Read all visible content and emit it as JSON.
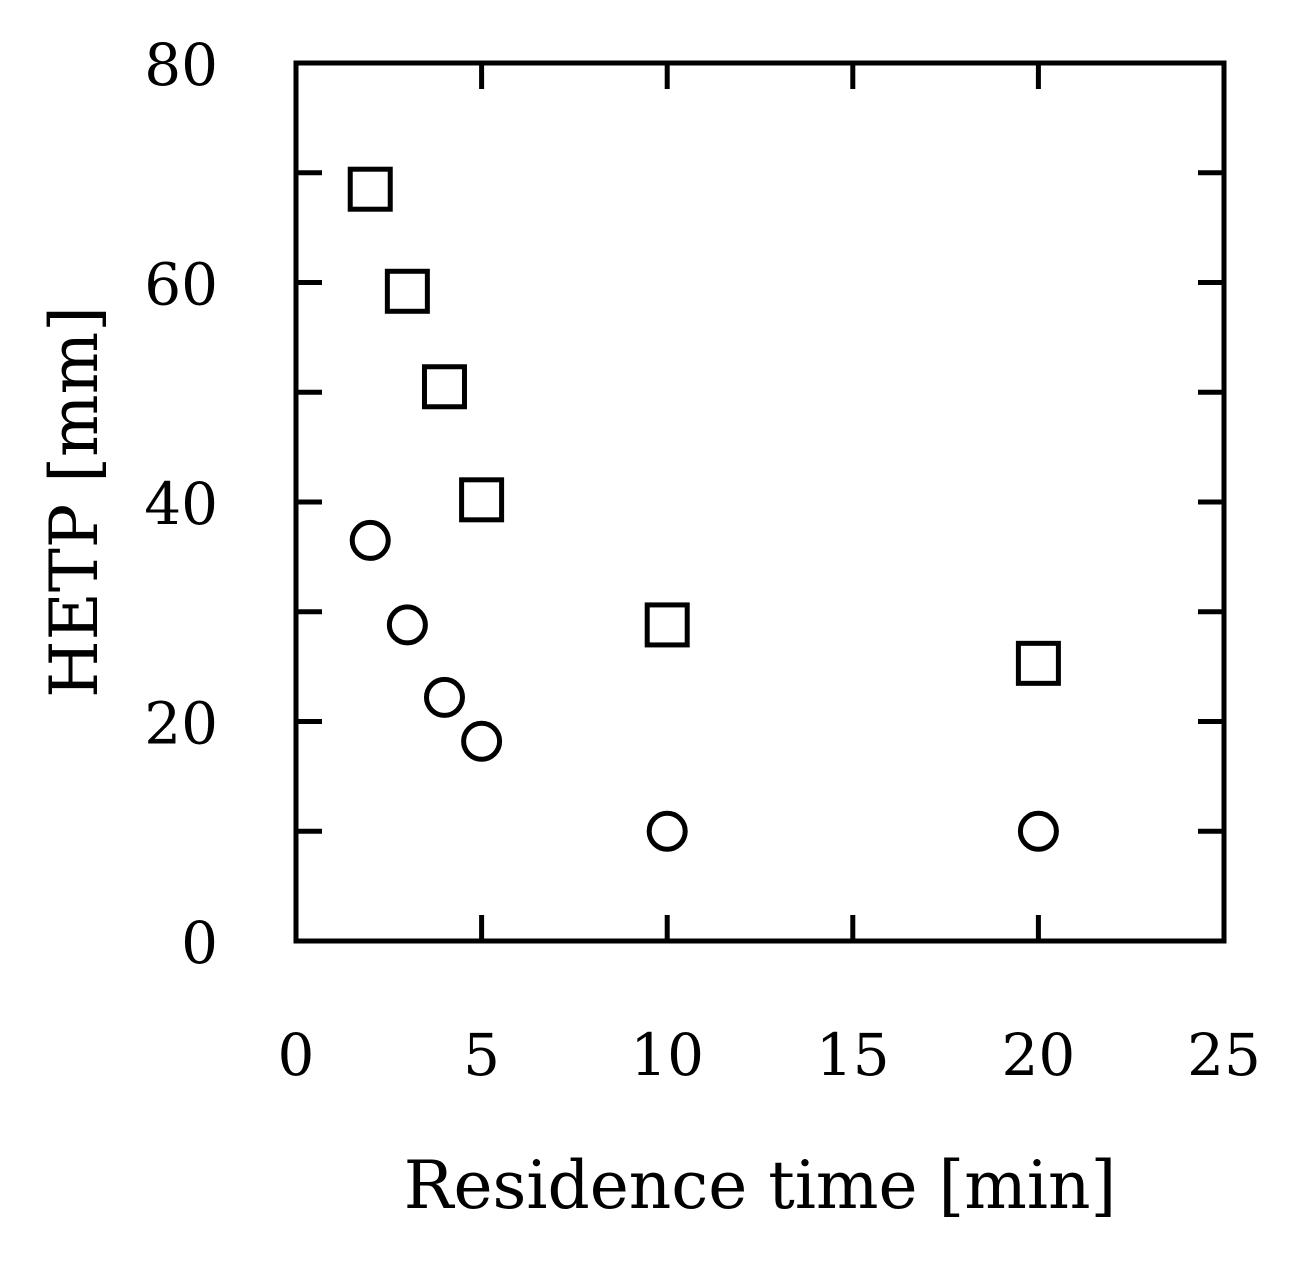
{
  "chart_data": {
    "type": "scatter",
    "title": "",
    "xlabel": "Residence time [min]",
    "ylabel": "HETP [mm]",
    "xlim": [
      0,
      25
    ],
    "ylim": [
      0,
      80
    ],
    "x_ticks": [
      0,
      5,
      10,
      15,
      20,
      25
    ],
    "y_ticks": [
      0,
      20,
      40,
      60,
      80
    ],
    "x_ticks_minor": [],
    "y_ticks_minor": [
      10,
      30,
      50,
      70
    ],
    "grid": false,
    "legend": "none",
    "series": [
      {
        "marker": "square",
        "color": "#000000",
        "x": [
          2,
          3,
          4,
          5,
          10,
          20
        ],
        "y": [
          68.5,
          59.2,
          50.5,
          40.2,
          28.8,
          25.3
        ]
      },
      {
        "marker": "circle",
        "color": "#000000",
        "x": [
          2,
          3,
          4,
          5,
          10,
          20
        ],
        "y": [
          36.5,
          28.8,
          22.2,
          18.2,
          10.0,
          10.0
        ]
      }
    ]
  }
}
